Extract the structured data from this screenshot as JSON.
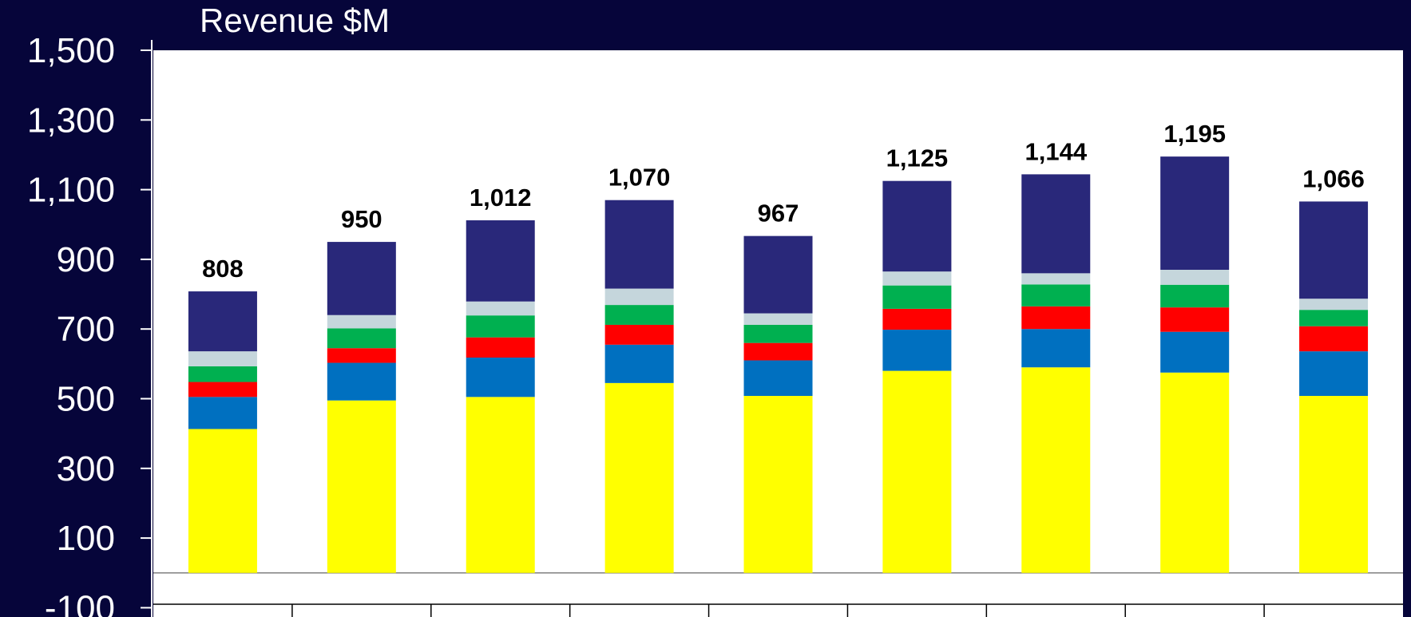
{
  "chart_data": {
    "type": "bar",
    "stacked": true,
    "title": "Revenue $M",
    "xlabel": "",
    "ylabel": "",
    "ylim": [
      -100,
      1500
    ],
    "yticks": [
      -100,
      100,
      300,
      500,
      700,
      900,
      1100,
      1300,
      1500
    ],
    "ytick_labels": [
      "-100",
      "100",
      "300",
      "500",
      "700",
      "900",
      "1,100",
      "1,300",
      "1,500"
    ],
    "categories": [
      "",
      "",
      "",
      "",
      "",
      "",
      "",
      "",
      ""
    ],
    "totals": [
      808,
      950,
      1012,
      1070,
      967,
      1125,
      1144,
      1195,
      1066
    ],
    "total_labels": [
      "808",
      "950",
      "1,012",
      "1,070",
      "967",
      "1,125",
      "1,144",
      "1,195",
      "1,066"
    ],
    "series": [
      {
        "color": "#ffff00",
        "values": [
          413,
          495,
          505,
          545,
          508,
          580,
          590,
          575,
          508
        ]
      },
      {
        "color": "#0070c0",
        "values": [
          92,
          108,
          113,
          110,
          102,
          118,
          110,
          117,
          128
        ]
      },
      {
        "color": "#ff0000",
        "values": [
          43,
          42,
          58,
          57,
          50,
          60,
          65,
          70,
          72
        ]
      },
      {
        "color": "#00b050",
        "values": [
          45,
          57,
          63,
          57,
          52,
          67,
          63,
          65,
          47
        ]
      },
      {
        "color": "#c5d6dc",
        "values": [
          43,
          38,
          40,
          47,
          33,
          40,
          32,
          43,
          32
        ]
      },
      {
        "color": "#29287a",
        "values": [
          172,
          210,
          233,
          254,
          222,
          260,
          284,
          325,
          279
        ]
      }
    ]
  }
}
